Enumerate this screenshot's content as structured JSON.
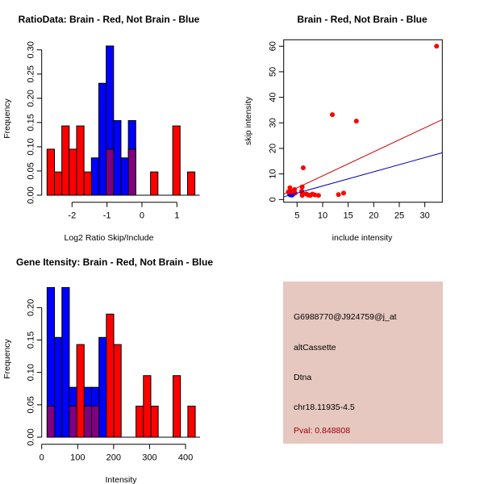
{
  "chart_data": [
    {
      "type": "bar",
      "title": "RatioData: Brain - Red, Not Brain - Blue",
      "xlabel": "Log2 Ratio Skip/Include",
      "ylabel": "Frequency",
      "bin_start": -2.715,
      "bin_width": 0.2115,
      "xticks": [
        -2,
        -1,
        0,
        1
      ],
      "yticks": [
        "0.00",
        "0.05",
        "0.10",
        "0.15",
        "0.20",
        "0.25",
        "0.30"
      ],
      "ylim": [
        0,
        0.3
      ],
      "series": [
        {
          "name": "Not Brain",
          "color": "#0000ff",
          "values": [
            0,
            0,
            0,
            0,
            0,
            0,
            0.077,
            0.231,
            0.308,
            0.154,
            0.077,
            0.154,
            0,
            0,
            0,
            0,
            0,
            0,
            0,
            0
          ]
        },
        {
          "name": "Brain",
          "color": "#ff0000",
          "values": [
            0.095,
            0.048,
            0.143,
            0.095,
            0.143,
            0.048,
            0,
            0,
            0.095,
            0,
            0,
            0.095,
            0,
            0,
            0.048,
            0,
            0,
            0.143,
            0,
            0.048
          ]
        }
      ],
      "overlap_color": "#800080"
    },
    {
      "type": "scatter",
      "title": "Brain - Red, Not Brain - Blue",
      "xlabel": "include intensity",
      "ylabel": "skip intensity",
      "xlim": [
        2.4,
        33.4
      ],
      "ylim": [
        -0.8,
        62.5
      ],
      "xticks": [
        5,
        10,
        15,
        20,
        25,
        30
      ],
      "yticks": [
        0,
        10,
        20,
        30,
        40,
        50,
        60
      ],
      "series": [
        {
          "name": "Brain",
          "color": "#ff0000",
          "points": [
            [
              32.3,
              60
            ],
            [
              11.9,
              33.2
            ],
            [
              16.6,
              30.7
            ],
            [
              6.2,
              12.4
            ],
            [
              3.6,
              4.6
            ],
            [
              4.5,
              3.9
            ],
            [
              6.0,
              4.9
            ],
            [
              6.0,
              2.5
            ],
            [
              6.0,
              1.6
            ],
            [
              6.8,
              2.2
            ],
            [
              7.2,
              1.7
            ],
            [
              7.6,
              1.6
            ],
            [
              8.0,
              2.1
            ],
            [
              8.5,
              1.8
            ],
            [
              9.2,
              1.6
            ],
            [
              13.1,
              1.9
            ],
            [
              14.1,
              2.5
            ],
            [
              3.3,
              3.0
            ],
            [
              4.0,
              3.0
            ],
            [
              5.9,
              3.3
            ],
            [
              4.6,
              2.5
            ]
          ],
          "fit": {
            "slope": 0.94,
            "intercept": -0.14
          }
        },
        {
          "name": "Not Brain",
          "color": "#0000ff",
          "points": [
            [
              3.6,
              2.0
            ],
            [
              3.8,
              1.8
            ],
            [
              4.0,
              2.2
            ],
            [
              3.7,
              2.6
            ],
            [
              4.1,
              1.9
            ],
            [
              3.9,
              2.4
            ],
            [
              4.2,
              2.1
            ],
            [
              3.5,
              2.3
            ],
            [
              3.8,
              2.8
            ],
            [
              4.0,
              1.7
            ],
            [
              3.6,
              1.9
            ],
            [
              4.1,
              2.5
            ],
            [
              3.9,
              2.0
            ]
          ],
          "fit": {
            "slope": 0.556,
            "intercept": -0.27
          }
        }
      ]
    },
    {
      "type": "bar",
      "title": "Gene Itensity: Brain - Red, Not Brain - Blue",
      "xlabel": "Intensity",
      "ylabel": "Frequency",
      "bin_start": 15,
      "bin_width": 20.6,
      "xticks": [
        0,
        100,
        200,
        300,
        400
      ],
      "yticks": [
        "0.00",
        "0.05",
        "0.10",
        "0.15",
        "0.20"
      ],
      "ylim": [
        0,
        0.23
      ],
      "series": [
        {
          "name": "Not Brain",
          "color": "#0000ff",
          "values": [
            0.231,
            0.154,
            0.231,
            0.077,
            0,
            0.077,
            0.077,
            0.154,
            0,
            0,
            0,
            0,
            0,
            0,
            0,
            0,
            0,
            0,
            0,
            0
          ]
        },
        {
          "name": "Brain",
          "color": "#ff0000",
          "values": [
            0.048,
            0,
            0,
            0.048,
            0.143,
            0.048,
            0.048,
            0,
            0.19,
            0.143,
            0,
            0,
            0.048,
            0.095,
            0.048,
            0,
            0,
            0.095,
            0,
            0.048
          ]
        }
      ],
      "overlap_color": "#800080"
    }
  ],
  "info_panel": {
    "background": "#e6c8c0",
    "probe_id": "G6988770@J924759@j_at",
    "event_type": "altCassette",
    "gene": "Dtna",
    "location": "chr18.11935-4.5",
    "pval": "Pval: 0.848808",
    "pval_color": "#a00000"
  }
}
